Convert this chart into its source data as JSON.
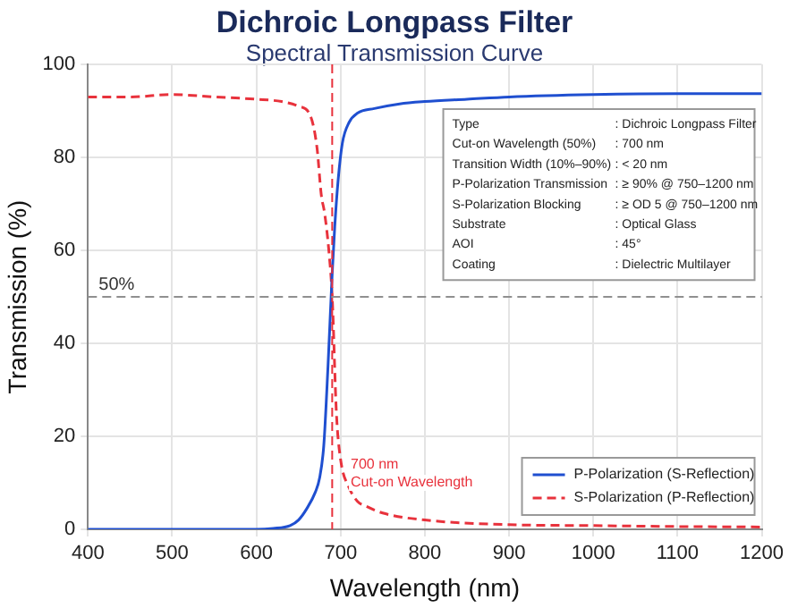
{
  "chart_data": {
    "type": "line",
    "title": "Dichroic Longpass Filter",
    "subtitle": "Spectral Transmission Curve",
    "xlabel": "Wavelength (nm)",
    "ylabel": "Transmission (%)",
    "xlim": [
      400,
      1200
    ],
    "xticks": [
      400,
      500,
      600,
      700,
      800,
      900,
      1000,
      1100,
      1200
    ],
    "ylim": [
      0,
      100
    ],
    "yticks": [
      0,
      20,
      40,
      60,
      80,
      100
    ],
    "grid": true,
    "legend": "bottom right",
    "marker": "none",
    "series": [
      {
        "name": "P-Polarization (S-Reflection)",
        "color": "#1f4fd0",
        "line_style": "solid",
        "x": [
          400,
          500,
          600,
          620,
          640,
          650,
          660,
          670,
          675,
          680,
          685,
          690,
          693,
          697,
          702,
          710,
          720,
          740,
          770,
          800,
          850,
          900,
          1000,
          1100,
          1200
        ],
        "values": [
          0,
          0,
          0,
          0.2,
          0.8,
          2,
          4.5,
          8,
          11,
          18,
          35,
          55,
          65,
          75,
          83,
          87.5,
          89.5,
          90.5,
          91.5,
          92,
          92.5,
          93,
          93.5,
          93.7,
          93.7
        ]
      },
      {
        "name": "S-Polarization (P-Reflection)",
        "color": "#e8323c",
        "line_style": "dashed",
        "x": [
          400,
          450,
          500,
          550,
          600,
          630,
          650,
          664,
          672,
          677,
          681,
          686,
          690,
          695,
          700,
          710,
          720,
          730,
          750,
          800,
          900,
          1000,
          1100,
          1200
        ],
        "values": [
          93,
          93,
          93.5,
          93,
          92.5,
          92,
          91,
          89,
          82,
          72,
          68,
          60,
          50,
          25,
          15,
          9,
          6,
          5,
          3.5,
          2,
          1,
          0.8,
          0.6,
          0.5
        ]
      }
    ],
    "ref_lines": [
      {
        "axis": "x",
        "value": 690,
        "color": "#e8323c",
        "line_style": "dashed"
      },
      {
        "axis": "y",
        "value": 50,
        "label": "50%",
        "color": "#909090",
        "line_style": "dashed"
      }
    ],
    "annotations": [
      "Type",
      ": Dichroic Longpass Filter",
      "Cut-on Wavelength (50%)",
      ": 700 nm",
      "Transition Width (10%–90%)",
      ": < 20 nm",
      "P-Polarization Transmission",
      ": ≥ 90% @ 750–1200 nm",
      "S-Polarization Blocking",
      ": ≥ OD 5 @ 750–1200 nm",
      "Substrate",
      ": Optical Glass",
      "AOI",
      ": 45°",
      "Coating",
      ": Dielectric Multilayer",
      {
        "text": "700 nm",
        "x": 712,
        "y": 14
      },
      {
        "text": "Cut-on Wavelength",
        "x": 712,
        "y": 10
      }
    ]
  }
}
